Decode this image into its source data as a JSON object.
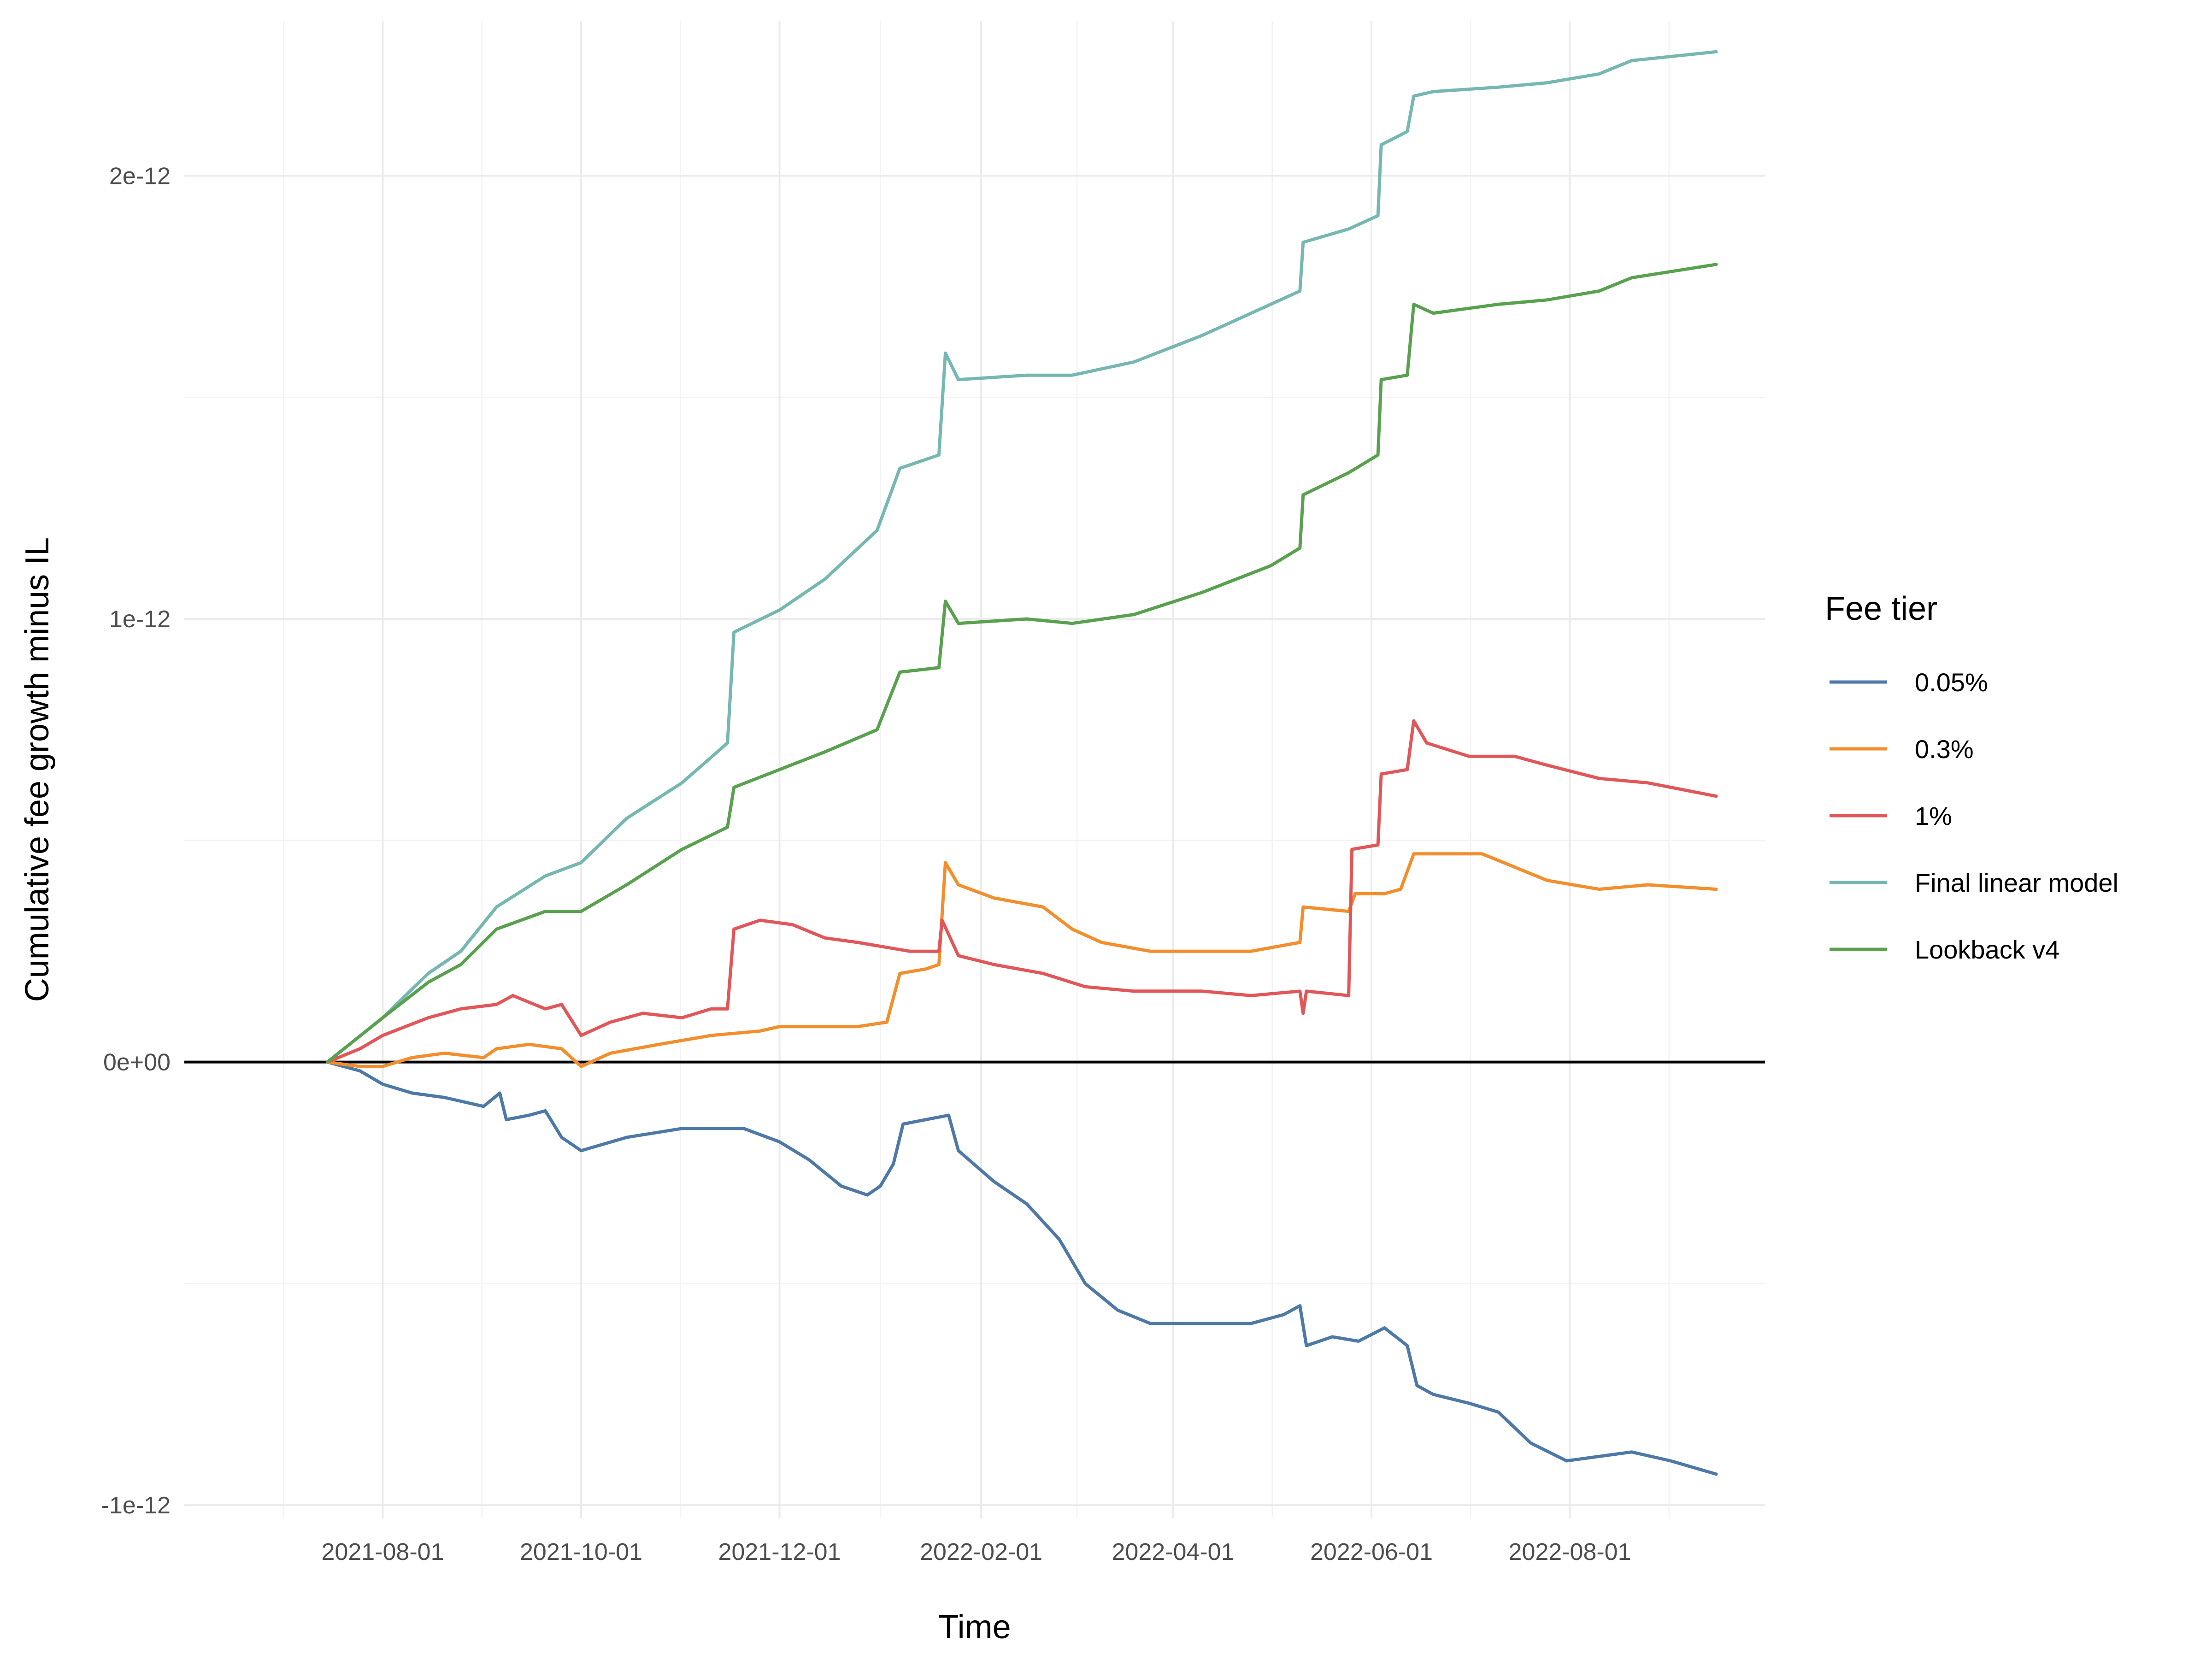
{
  "chart_data": {
    "type": "line",
    "xlabel": "Time",
    "ylabel": "Cumulative fee growth minus IL",
    "x_ticks": [
      "2021-08-01",
      "2021-10-01",
      "2021-12-01",
      "2022-02-01",
      "2022-04-01",
      "2022-06-01",
      "2022-08-01"
    ],
    "xlim": [
      "2021-06-01",
      "2022-09-30"
    ],
    "y_ticks": [
      -1e-12,
      0,
      1e-12,
      2e-12
    ],
    "y_tick_labels": [
      "-1e-12",
      "0e+00",
      "1e-12",
      "2e-12"
    ],
    "ylim": [
      -1.03e-12,
      2.35e-12
    ],
    "grid": true,
    "zero_line": true,
    "legend": {
      "title": "Fee tier",
      "placement": "right"
    },
    "series": [
      {
        "name": "0.05%",
        "color": "#4e79a7",
        "points": [
          [
            "2021-07-15",
            0
          ],
          [
            "2021-07-20",
            -1e-14
          ],
          [
            "2021-07-25",
            -2e-14
          ],
          [
            "2021-08-01",
            -5e-14
          ],
          [
            "2021-08-10",
            -7e-14
          ],
          [
            "2021-08-20",
            -8e-14
          ],
          [
            "2021-09-01",
            -1e-13
          ],
          [
            "2021-09-06",
            -7e-14
          ],
          [
            "2021-09-08",
            -1.3e-13
          ],
          [
            "2021-09-15",
            -1.2e-13
          ],
          [
            "2021-09-20",
            -1.1e-13
          ],
          [
            "2021-09-25",
            -1.7e-13
          ],
          [
            "2021-10-01",
            -2e-13
          ],
          [
            "2021-10-15",
            -1.7e-13
          ],
          [
            "2021-11-01",
            -1.5e-13
          ],
          [
            "2021-11-10",
            -1.5e-13
          ],
          [
            "2021-11-20",
            -1.5e-13
          ],
          [
            "2021-12-01",
            -1.8e-13
          ],
          [
            "2021-12-10",
            -2.2e-13
          ],
          [
            "2021-12-20",
            -2.8e-13
          ],
          [
            "2021-12-28",
            -3e-13
          ],
          [
            "2022-01-01",
            -2.8e-13
          ],
          [
            "2022-01-05",
            -2.3e-13
          ],
          [
            "2022-01-08",
            -1.4e-13
          ],
          [
            "2022-01-15",
            -1.3e-13
          ],
          [
            "2022-01-22",
            -1.2e-13
          ],
          [
            "2022-01-25",
            -2e-13
          ],
          [
            "2022-02-05",
            -2.7e-13
          ],
          [
            "2022-02-15",
            -3.2e-13
          ],
          [
            "2022-02-25",
            -4e-13
          ],
          [
            "2022-03-05",
            -5e-13
          ],
          [
            "2022-03-15",
            -5.6e-13
          ],
          [
            "2022-03-25",
            -5.9e-13
          ],
          [
            "2022-04-05",
            -5.9e-13
          ],
          [
            "2022-04-15",
            -5.9e-13
          ],
          [
            "2022-04-25",
            -5.9e-13
          ],
          [
            "2022-05-05",
            -5.7e-13
          ],
          [
            "2022-05-10",
            -5.5e-13
          ],
          [
            "2022-05-12",
            -6.4e-13
          ],
          [
            "2022-05-20",
            -6.2e-13
          ],
          [
            "2022-05-28",
            -6.3e-13
          ],
          [
            "2022-06-05",
            -6e-13
          ],
          [
            "2022-06-12",
            -6.4e-13
          ],
          [
            "2022-06-15",
            -7.3e-13
          ],
          [
            "2022-06-20",
            -7.5e-13
          ],
          [
            "2022-07-01",
            -7.7e-13
          ],
          [
            "2022-07-10",
            -7.9e-13
          ],
          [
            "2022-07-20",
            -8.6e-13
          ],
          [
            "2022-07-31",
            -9e-13
          ],
          [
            "2022-08-10",
            -8.9e-13
          ],
          [
            "2022-08-20",
            -8.8e-13
          ],
          [
            "2022-09-01",
            -9e-13
          ],
          [
            "2022-09-15",
            -9.3e-13
          ]
        ]
      },
      {
        "name": "0.3%",
        "color": "#f28e2b",
        "points": [
          [
            "2021-07-15",
            0
          ],
          [
            "2021-07-25",
            -1e-14
          ],
          [
            "2021-08-01",
            -1e-14
          ],
          [
            "2021-08-10",
            1e-14
          ],
          [
            "2021-08-20",
            2e-14
          ],
          [
            "2021-09-01",
            1e-14
          ],
          [
            "2021-09-05",
            3e-14
          ],
          [
            "2021-09-15",
            4e-14
          ],
          [
            "2021-09-25",
            3e-14
          ],
          [
            "2021-10-01",
            -1e-14
          ],
          [
            "2021-10-10",
            2e-14
          ],
          [
            "2021-10-25",
            4e-14
          ],
          [
            "2021-11-10",
            6e-14
          ],
          [
            "2021-11-25",
            7e-14
          ],
          [
            "2021-12-01",
            8e-14
          ],
          [
            "2021-12-15",
            8e-14
          ],
          [
            "2021-12-25",
            8e-14
          ],
          [
            "2022-01-03",
            9e-14
          ],
          [
            "2022-01-07",
            2e-13
          ],
          [
            "2022-01-15",
            2.1e-13
          ],
          [
            "2022-01-19",
            2.2e-13
          ],
          [
            "2022-01-21",
            4.5e-13
          ],
          [
            "2022-01-25",
            4e-13
          ],
          [
            "2022-02-05",
            3.7e-13
          ],
          [
            "2022-02-20",
            3.5e-13
          ],
          [
            "2022-03-01",
            3e-13
          ],
          [
            "2022-03-10",
            2.7e-13
          ],
          [
            "2022-03-25",
            2.5e-13
          ],
          [
            "2022-04-10",
            2.5e-13
          ],
          [
            "2022-04-25",
            2.5e-13
          ],
          [
            "2022-05-10",
            2.7e-13
          ],
          [
            "2022-05-11",
            3.5e-13
          ],
          [
            "2022-05-25",
            3.4e-13
          ],
          [
            "2022-05-27",
            3.8e-13
          ],
          [
            "2022-06-05",
            3.8e-13
          ],
          [
            "2022-06-10",
            3.9e-13
          ],
          [
            "2022-06-14",
            4.7e-13
          ],
          [
            "2022-06-20",
            4.7e-13
          ],
          [
            "2022-07-05",
            4.7e-13
          ],
          [
            "2022-07-15",
            4.4e-13
          ],
          [
            "2022-07-25",
            4.1e-13
          ],
          [
            "2022-08-10",
            3.9e-13
          ],
          [
            "2022-08-25",
            4e-13
          ],
          [
            "2022-09-15",
            3.9e-13
          ]
        ]
      },
      {
        "name": "1%",
        "color": "#e15759",
        "points": [
          [
            "2021-07-15",
            0
          ],
          [
            "2021-07-25",
            3e-14
          ],
          [
            "2021-08-01",
            6e-14
          ],
          [
            "2021-08-15",
            1e-13
          ],
          [
            "2021-08-25",
            1.2e-13
          ],
          [
            "2021-09-05",
            1.3e-13
          ],
          [
            "2021-09-10",
            1.5e-13
          ],
          [
            "2021-09-20",
            1.2e-13
          ],
          [
            "2021-09-25",
            1.3e-13
          ],
          [
            "2021-10-01",
            6e-14
          ],
          [
            "2021-10-10",
            9e-14
          ],
          [
            "2021-10-20",
            1.1e-13
          ],
          [
            "2021-11-01",
            1e-13
          ],
          [
            "2021-11-10",
            1.2e-13
          ],
          [
            "2021-11-15",
            1.2e-13
          ],
          [
            "2021-11-17",
            3e-13
          ],
          [
            "2021-11-25",
            3.2e-13
          ],
          [
            "2021-12-05",
            3.1e-13
          ],
          [
            "2021-12-15",
            2.8e-13
          ],
          [
            "2021-12-25",
            2.7e-13
          ],
          [
            "2022-01-10",
            2.5e-13
          ],
          [
            "2022-01-19",
            2.5e-13
          ],
          [
            "2022-01-20",
            3.2e-13
          ],
          [
            "2022-01-25",
            2.4e-13
          ],
          [
            "2022-02-05",
            2.2e-13
          ],
          [
            "2022-02-20",
            2e-13
          ],
          [
            "2022-03-05",
            1.7e-13
          ],
          [
            "2022-03-20",
            1.6e-13
          ],
          [
            "2022-04-10",
            1.6e-13
          ],
          [
            "2022-04-25",
            1.5e-13
          ],
          [
            "2022-05-10",
            1.6e-13
          ],
          [
            "2022-05-11",
            1.1e-13
          ],
          [
            "2022-05-12",
            1.6e-13
          ],
          [
            "2022-05-25",
            1.5e-13
          ],
          [
            "2022-05-26",
            4.8e-13
          ],
          [
            "2022-06-03",
            4.9e-13
          ],
          [
            "2022-06-04",
            6.5e-13
          ],
          [
            "2022-06-12",
            6.6e-13
          ],
          [
            "2022-06-14",
            7.7e-13
          ],
          [
            "2022-06-18",
            7.2e-13
          ],
          [
            "2022-07-01",
            6.9e-13
          ],
          [
            "2022-07-15",
            6.9e-13
          ],
          [
            "2022-07-25",
            6.7e-13
          ],
          [
            "2022-08-10",
            6.4e-13
          ],
          [
            "2022-08-25",
            6.3e-13
          ],
          [
            "2022-09-15",
            6e-13
          ]
        ]
      },
      {
        "name": "Final linear model",
        "color": "#76b7b2",
        "points": [
          [
            "2021-07-15",
            0
          ],
          [
            "2021-08-01",
            1e-13
          ],
          [
            "2021-08-15",
            2e-13
          ],
          [
            "2021-08-25",
            2.5e-13
          ],
          [
            "2021-09-05",
            3.5e-13
          ],
          [
            "2021-09-20",
            4.2e-13
          ],
          [
            "2021-10-01",
            4.5e-13
          ],
          [
            "2021-10-15",
            5.5e-13
          ],
          [
            "2021-11-01",
            6.3e-13
          ],
          [
            "2021-11-15",
            7.2e-13
          ],
          [
            "2021-11-17",
            9.7e-13
          ],
          [
            "2021-12-01",
            1.02e-12
          ],
          [
            "2021-12-15",
            1.09e-12
          ],
          [
            "2021-12-31",
            1.2e-12
          ],
          [
            "2022-01-07",
            1.34e-12
          ],
          [
            "2022-01-19",
            1.37e-12
          ],
          [
            "2022-01-21",
            1.6e-12
          ],
          [
            "2022-01-25",
            1.54e-12
          ],
          [
            "2022-02-15",
            1.55e-12
          ],
          [
            "2022-03-01",
            1.55e-12
          ],
          [
            "2022-03-20",
            1.58e-12
          ],
          [
            "2022-04-10",
            1.64e-12
          ],
          [
            "2022-05-01",
            1.71e-12
          ],
          [
            "2022-05-10",
            1.74e-12
          ],
          [
            "2022-05-11",
            1.85e-12
          ],
          [
            "2022-05-25",
            1.88e-12
          ],
          [
            "2022-06-03",
            1.91e-12
          ],
          [
            "2022-06-04",
            2.07e-12
          ],
          [
            "2022-06-12",
            2.1e-12
          ],
          [
            "2022-06-14",
            2.18e-12
          ],
          [
            "2022-06-20",
            2.19e-12
          ],
          [
            "2022-07-10",
            2.2e-12
          ],
          [
            "2022-07-25",
            2.21e-12
          ],
          [
            "2022-08-10",
            2.23e-12
          ],
          [
            "2022-08-20",
            2.26e-12
          ],
          [
            "2022-09-15",
            2.28e-12
          ]
        ]
      },
      {
        "name": "Lookback v4",
        "color": "#59a14f",
        "points": [
          [
            "2021-07-15",
            0
          ],
          [
            "2021-08-01",
            1e-13
          ],
          [
            "2021-08-15",
            1.8e-13
          ],
          [
            "2021-08-25",
            2.2e-13
          ],
          [
            "2021-09-05",
            3e-13
          ],
          [
            "2021-09-20",
            3.4e-13
          ],
          [
            "2021-10-01",
            3.4e-13
          ],
          [
            "2021-10-15",
            4e-13
          ],
          [
            "2021-11-01",
            4.8e-13
          ],
          [
            "2021-11-15",
            5.3e-13
          ],
          [
            "2021-11-17",
            6.2e-13
          ],
          [
            "2021-12-01",
            6.6e-13
          ],
          [
            "2021-12-15",
            7e-13
          ],
          [
            "2021-12-31",
            7.5e-13
          ],
          [
            "2022-01-07",
            8.8e-13
          ],
          [
            "2022-01-19",
            8.9e-13
          ],
          [
            "2022-01-21",
            1.04e-12
          ],
          [
            "2022-01-25",
            9.9e-13
          ],
          [
            "2022-02-15",
            1e-12
          ],
          [
            "2022-03-01",
            9.9e-13
          ],
          [
            "2022-03-20",
            1.01e-12
          ],
          [
            "2022-04-10",
            1.06e-12
          ],
          [
            "2022-05-01",
            1.12e-12
          ],
          [
            "2022-05-10",
            1.16e-12
          ],
          [
            "2022-05-11",
            1.28e-12
          ],
          [
            "2022-05-25",
            1.33e-12
          ],
          [
            "2022-06-03",
            1.37e-12
          ],
          [
            "2022-06-04",
            1.54e-12
          ],
          [
            "2022-06-12",
            1.55e-12
          ],
          [
            "2022-06-14",
            1.71e-12
          ],
          [
            "2022-06-20",
            1.69e-12
          ],
          [
            "2022-07-10",
            1.71e-12
          ],
          [
            "2022-07-25",
            1.72e-12
          ],
          [
            "2022-08-10",
            1.74e-12
          ],
          [
            "2022-08-20",
            1.77e-12
          ],
          [
            "2022-09-15",
            1.8e-12
          ]
        ]
      }
    ]
  }
}
